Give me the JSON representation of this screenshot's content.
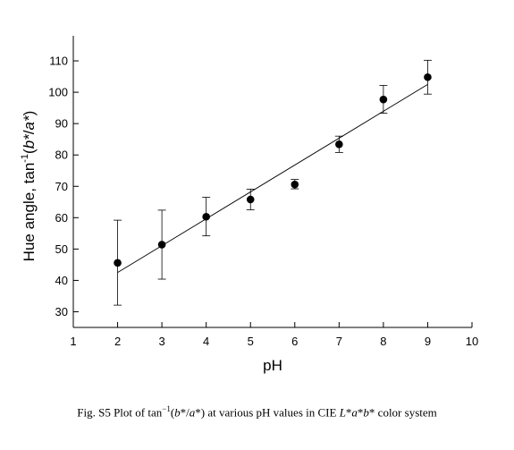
{
  "chart_data": {
    "type": "scatter",
    "xlabel": "pH",
    "ylabel": {
      "prefix": "Hue angle, tan",
      "sup": "-1",
      "open": "(",
      "b": "b",
      "star1": "*",
      "slash": "/",
      "a": "a",
      "star2": "*",
      "close": ")"
    },
    "xlim": [
      1,
      10
    ],
    "ylim": [
      25,
      118
    ],
    "xticks": [
      1,
      2,
      3,
      4,
      5,
      6,
      7,
      8,
      9,
      10
    ],
    "yticks": [
      30,
      40,
      50,
      60,
      70,
      80,
      90,
      100,
      110
    ],
    "grid": false,
    "series": [
      {
        "x": [
          2,
          3,
          4,
          5,
          6,
          7,
          8,
          9
        ],
        "y": [
          45.6,
          51.4,
          60.3,
          65.8,
          70.6,
          83.4,
          97.7,
          104.8
        ],
        "err_low": [
          32.1,
          40.4,
          54.2,
          62.5,
          69.2,
          80.8,
          93.3,
          99.4
        ],
        "err_high": [
          59.2,
          62.4,
          66.5,
          69.1,
          72.2,
          86.0,
          102.2,
          110.2
        ]
      }
    ],
    "fit_line": {
      "x": [
        2,
        9
      ],
      "y": [
        42.5,
        102.5
      ]
    }
  },
  "caption": {
    "prefix": "Fig. S5 Plot of tan",
    "sup": "−1",
    "open": "(",
    "b": "b",
    "star1": "*/",
    "a": "a",
    "star2": "*) at various pH values in CIE ",
    "L": "L",
    "star3": "*",
    "a2": "a",
    "star4": "*",
    "b2": "b",
    "suffix": "* color system"
  }
}
